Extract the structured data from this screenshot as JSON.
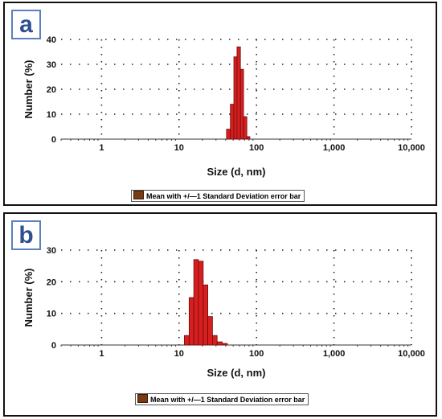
{
  "chart_data": [
    {
      "type": "bar",
      "panel_label": "a",
      "xlabel": "Size (d, nm)",
      "ylabel": "Number (%)",
      "xscale": "log",
      "xlim": [
        0.3,
        10000
      ],
      "ylim": [
        0,
        40
      ],
      "xticks": [
        "1",
        "10",
        "100",
        "1,000",
        "10,000"
      ],
      "yticks": [
        "0",
        "10",
        "20",
        "30",
        "40"
      ],
      "grid": true,
      "bins": [
        {
          "x0": 41,
          "x1": 46,
          "value": 4
        },
        {
          "x0": 46,
          "x1": 51,
          "value": 14
        },
        {
          "x0": 51,
          "x1": 56,
          "value": 33
        },
        {
          "x0": 56,
          "x1": 62,
          "value": 37
        },
        {
          "x0": 62,
          "x1": 68,
          "value": 28
        },
        {
          "x0": 68,
          "x1": 75,
          "value": 9
        },
        {
          "x0": 75,
          "x1": 82,
          "value": 1
        }
      ],
      "legend": "Mean with +/—1 Standard Deviation error bar",
      "legend_position": "bottom-center"
    },
    {
      "type": "bar",
      "panel_label": "b",
      "xlabel": "Size (d, nm)",
      "ylabel": "Number (%)",
      "xscale": "log",
      "xlim": [
        0.3,
        10000
      ],
      "ylim": [
        0,
        30
      ],
      "xticks": [
        "1",
        "10",
        "100",
        "1,000",
        "10,000"
      ],
      "yticks": [
        "0",
        "10",
        "20",
        "30"
      ],
      "grid": true,
      "bins": [
        {
          "x0": 11.7,
          "x1": 13.5,
          "value": 3
        },
        {
          "x0": 13.5,
          "x1": 15.5,
          "value": 15
        },
        {
          "x0": 15.5,
          "x1": 17.8,
          "value": 27
        },
        {
          "x0": 17.8,
          "x1": 20.5,
          "value": 26.5
        },
        {
          "x0": 20.5,
          "x1": 23.5,
          "value": 19
        },
        {
          "x0": 23.5,
          "x1": 27,
          "value": 9
        },
        {
          "x0": 27,
          "x1": 31,
          "value": 3
        },
        {
          "x0": 31,
          "x1": 36,
          "value": 1
        },
        {
          "x0": 36,
          "x1": 42,
          "value": 0.5
        }
      ],
      "legend": "Mean with +/—1 Standard Deviation error bar",
      "legend_position": "bottom-center"
    }
  ],
  "colors": {
    "bar_fill": "#d71f1f",
    "bar_stroke": "#6a0c0c",
    "legend_swatch": "#7a3a14",
    "badge_border": "#5b7fbf",
    "badge_text": "#2f4f8f"
  }
}
